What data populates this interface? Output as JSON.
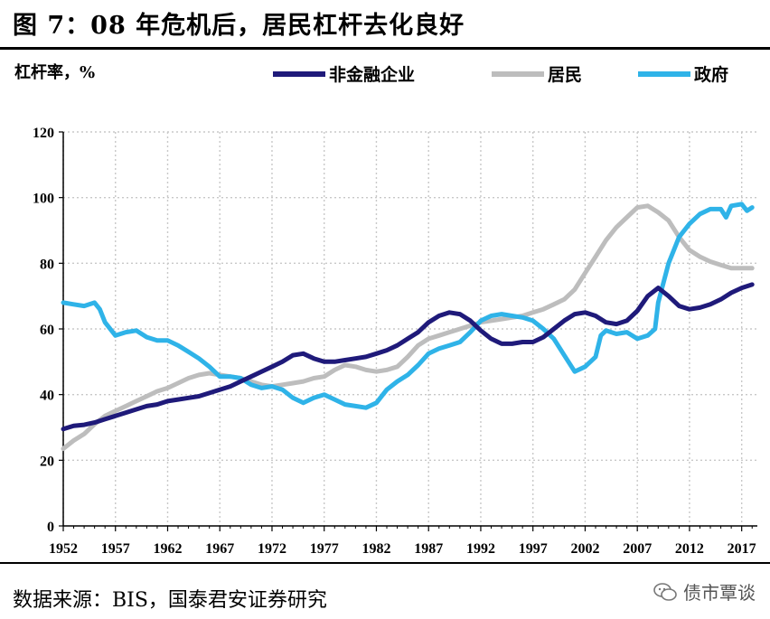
{
  "header": {
    "title": "图 7：08 年危机后，居民杠杆去化良好"
  },
  "footer": {
    "source": "数据来源：BIS，国泰君安证券研究",
    "watermark": "债市覃谈"
  },
  "chart_data": {
    "type": "line",
    "title": "图 7：08 年危机后，居民杠杆去化良好",
    "ylabel": "杠杆率，%",
    "xlabel": "",
    "ylim": [
      0,
      120
    ],
    "yticks": [
      0,
      20,
      40,
      60,
      80,
      100,
      120
    ],
    "xlim": [
      1952,
      2018.5
    ],
    "xticks": [
      1952,
      1957,
      1962,
      1967,
      1972,
      1977,
      1982,
      1987,
      1992,
      1997,
      2002,
      2007,
      2012,
      2017
    ],
    "grid": true,
    "legend_position": "top",
    "series": [
      {
        "name": "非金融企业",
        "color": "#1f1a7a",
        "points": [
          [
            1952,
            29.5
          ],
          [
            1953,
            30.5
          ],
          [
            1954,
            30.8
          ],
          [
            1955,
            31.5
          ],
          [
            1956,
            32.5
          ],
          [
            1957,
            33.5
          ],
          [
            1958,
            34.5
          ],
          [
            1959,
            35.5
          ],
          [
            1960,
            36.5
          ],
          [
            1961,
            37
          ],
          [
            1962,
            38
          ],
          [
            1963,
            38.5
          ],
          [
            1964,
            39
          ],
          [
            1965,
            39.5
          ],
          [
            1966,
            40.5
          ],
          [
            1967,
            41.5
          ],
          [
            1968,
            42.5
          ],
          [
            1969,
            44
          ],
          [
            1970,
            45.5
          ],
          [
            1971,
            47
          ],
          [
            1972,
            48.5
          ],
          [
            1973,
            50
          ],
          [
            1974,
            52
          ],
          [
            1975,
            52.5
          ],
          [
            1976,
            51
          ],
          [
            1977,
            50
          ],
          [
            1978,
            50
          ],
          [
            1979,
            50.5
          ],
          [
            1980,
            51
          ],
          [
            1981,
            51.5
          ],
          [
            1982,
            52.5
          ],
          [
            1983,
            53.5
          ],
          [
            1984,
            55
          ],
          [
            1985,
            57
          ],
          [
            1986,
            59
          ],
          [
            1987,
            62
          ],
          [
            1988,
            64
          ],
          [
            1989,
            65
          ],
          [
            1990,
            64.5
          ],
          [
            1991,
            62.5
          ],
          [
            1992,
            59.5
          ],
          [
            1993,
            57
          ],
          [
            1994,
            55.5
          ],
          [
            1995,
            55.5
          ],
          [
            1996,
            56
          ],
          [
            1997,
            56
          ],
          [
            1998,
            57.5
          ],
          [
            1999,
            60
          ],
          [
            2000,
            62.5
          ],
          [
            2001,
            64.5
          ],
          [
            2002,
            65
          ],
          [
            2003,
            64
          ],
          [
            2004,
            62
          ],
          [
            2005,
            61.5
          ],
          [
            2006,
            62.5
          ],
          [
            2007,
            65.5
          ],
          [
            2008,
            70
          ],
          [
            2009,
            72.5
          ],
          [
            2010,
            70
          ],
          [
            2011,
            67
          ],
          [
            2012,
            66
          ],
          [
            2013,
            66.5
          ],
          [
            2014,
            67.5
          ],
          [
            2015,
            69
          ],
          [
            2016,
            71
          ],
          [
            2017,
            72.5
          ],
          [
            2018,
            73.5
          ]
        ]
      },
      {
        "name": "居民",
        "color": "#bdbdbd",
        "points": [
          [
            1952,
            23.5
          ],
          [
            1953,
            26
          ],
          [
            1954,
            28
          ],
          [
            1955,
            31
          ],
          [
            1956,
            33.5
          ],
          [
            1957,
            35
          ],
          [
            1958,
            36.5
          ],
          [
            1959,
            38
          ],
          [
            1960,
            39.5
          ],
          [
            1961,
            41
          ],
          [
            1962,
            42
          ],
          [
            1963,
            43.5
          ],
          [
            1964,
            45
          ],
          [
            1965,
            46
          ],
          [
            1966,
            46.5
          ],
          [
            1967,
            46
          ],
          [
            1968,
            45.5
          ],
          [
            1969,
            45
          ],
          [
            1970,
            44
          ],
          [
            1971,
            43
          ],
          [
            1972,
            42.5
          ],
          [
            1973,
            43
          ],
          [
            1974,
            43.5
          ],
          [
            1975,
            44
          ],
          [
            1976,
            45
          ],
          [
            1977,
            45.5
          ],
          [
            1978,
            47.5
          ],
          [
            1979,
            49
          ],
          [
            1980,
            48.5
          ],
          [
            1981,
            47.5
          ],
          [
            1982,
            47
          ],
          [
            1983,
            47.5
          ],
          [
            1984,
            48.5
          ],
          [
            1985,
            51.5
          ],
          [
            1986,
            55
          ],
          [
            1987,
            57
          ],
          [
            1988,
            58
          ],
          [
            1989,
            59
          ],
          [
            1990,
            60
          ],
          [
            1991,
            61
          ],
          [
            1992,
            62
          ],
          [
            1993,
            62.5
          ],
          [
            1994,
            63
          ],
          [
            1995,
            63.5
          ],
          [
            1996,
            64
          ],
          [
            1997,
            65
          ],
          [
            1998,
            66
          ],
          [
            1999,
            67.5
          ],
          [
            2000,
            69
          ],
          [
            2001,
            72
          ],
          [
            2002,
            77
          ],
          [
            2003,
            82
          ],
          [
            2004,
            87
          ],
          [
            2005,
            91
          ],
          [
            2006,
            94
          ],
          [
            2007,
            97
          ],
          [
            2008,
            97.5
          ],
          [
            2009,
            95.5
          ],
          [
            2010,
            93
          ],
          [
            2011,
            88
          ],
          [
            2012,
            84
          ],
          [
            2013,
            82
          ],
          [
            2014,
            80.5
          ],
          [
            2015,
            79.5
          ],
          [
            2016,
            78.5
          ],
          [
            2017,
            78.5
          ],
          [
            2018,
            78.5
          ]
        ]
      },
      {
        "name": "政府",
        "color": "#2fb3e8",
        "points": [
          [
            1952,
            68
          ],
          [
            1953,
            67.5
          ],
          [
            1954,
            67
          ],
          [
            1955,
            68
          ],
          [
            1955.5,
            66
          ],
          [
            1956,
            62
          ],
          [
            1957,
            58
          ],
          [
            1958,
            59
          ],
          [
            1959,
            59.5
          ],
          [
            1960,
            57.5
          ],
          [
            1961,
            56.5
          ],
          [
            1962,
            56.5
          ],
          [
            1963,
            55
          ],
          [
            1964,
            53
          ],
          [
            1965,
            51
          ],
          [
            1966,
            48.5
          ],
          [
            1967,
            45.5
          ],
          [
            1968,
            45.5
          ],
          [
            1969,
            45
          ],
          [
            1970,
            43
          ],
          [
            1971,
            42
          ],
          [
            1972,
            42.5
          ],
          [
            1973,
            41.5
          ],
          [
            1974,
            39
          ],
          [
            1975,
            37.5
          ],
          [
            1976,
            39
          ],
          [
            1977,
            40
          ],
          [
            1978,
            38.5
          ],
          [
            1979,
            37
          ],
          [
            1980,
            36.5
          ],
          [
            1981,
            36
          ],
          [
            1982,
            37.5
          ],
          [
            1983,
            41.5
          ],
          [
            1984,
            44
          ],
          [
            1985,
            46
          ],
          [
            1986,
            49
          ],
          [
            1987,
            52.5
          ],
          [
            1988,
            54
          ],
          [
            1989,
            55
          ],
          [
            1990,
            56
          ],
          [
            1991,
            59
          ],
          [
            1992,
            62.5
          ],
          [
            1993,
            64
          ],
          [
            1994,
            64.5
          ],
          [
            1995,
            64
          ],
          [
            1996,
            63.5
          ],
          [
            1997,
            62.5
          ],
          [
            1998,
            60
          ],
          [
            1999,
            57
          ],
          [
            2000,
            52
          ],
          [
            2001,
            47
          ],
          [
            2002,
            48.5
          ],
          [
            2003,
            51.5
          ],
          [
            2003.5,
            58
          ],
          [
            2004,
            59.5
          ],
          [
            2005,
            58.5
          ],
          [
            2006,
            59
          ],
          [
            2007,
            57
          ],
          [
            2008,
            58
          ],
          [
            2008.7,
            60
          ],
          [
            2009,
            68
          ],
          [
            2010,
            80
          ],
          [
            2011,
            88
          ],
          [
            2012,
            92
          ],
          [
            2013,
            95
          ],
          [
            2014,
            96.5
          ],
          [
            2015,
            96.5
          ],
          [
            2015.5,
            94
          ],
          [
            2016,
            97.5
          ],
          [
            2017,
            98
          ],
          [
            2017.5,
            96
          ],
          [
            2018,
            97
          ]
        ]
      }
    ]
  }
}
